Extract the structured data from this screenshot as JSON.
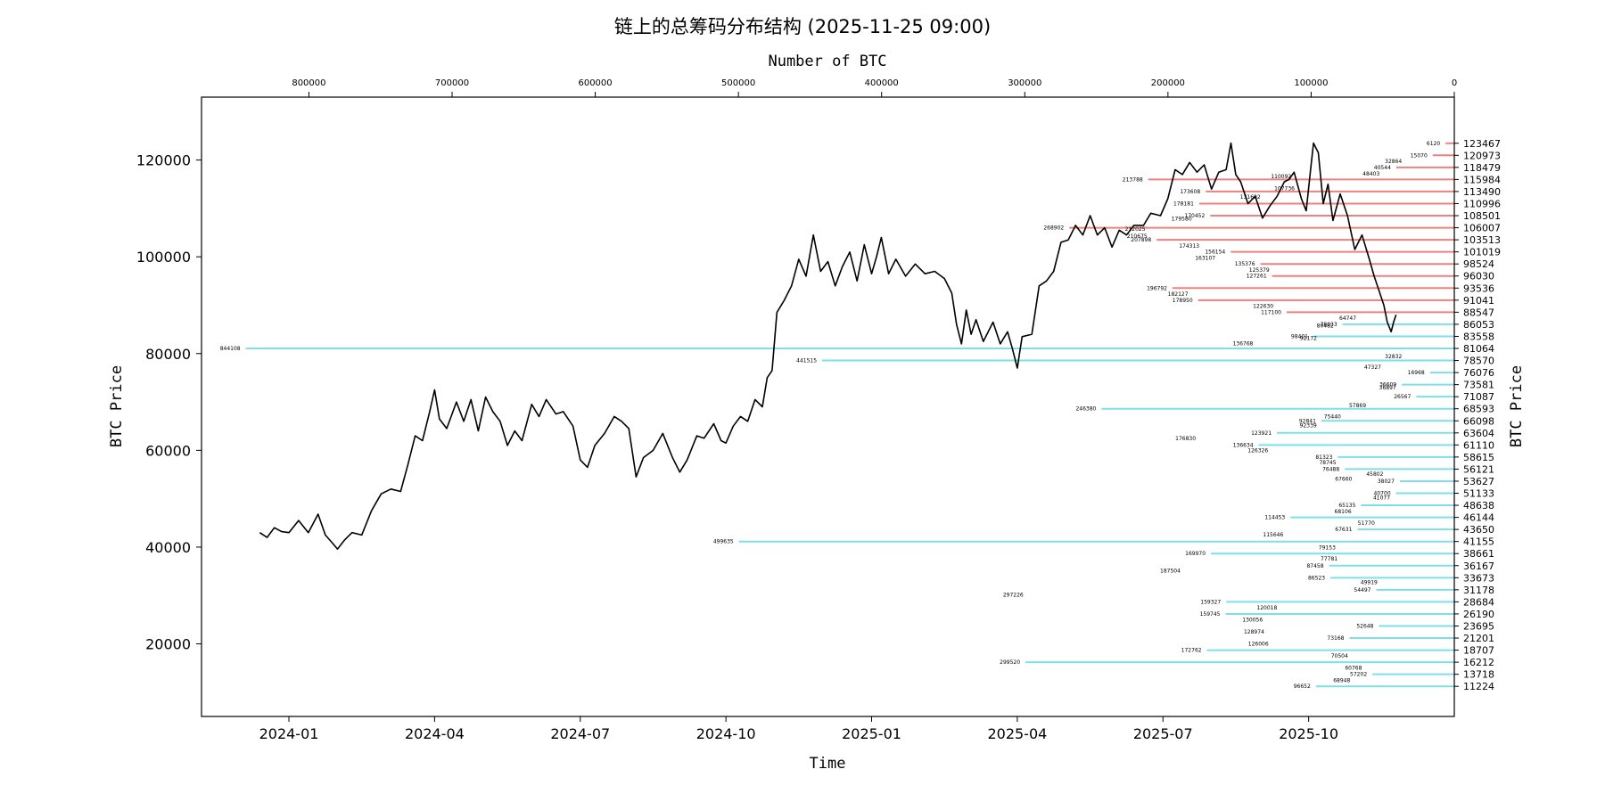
{
  "chart_data": {
    "type": "line",
    "title": "链上的总筹码分布结构 (2025-11-25 09:00)",
    "xlabel": "Time",
    "ylabel": "BTC Price",
    "right_ylabel": "BTC Price",
    "top_xlabel": "Number of BTC",
    "ylim": [
      5000,
      133000
    ],
    "xlim_months": [
      -1.8,
      24.0
    ],
    "top_xlim": [
      0,
      875000
    ],
    "grid": false,
    "x_ticks": [
      {
        "label": "2024-01",
        "m": 0
      },
      {
        "label": "2024-04",
        "m": 3
      },
      {
        "label": "2024-07",
        "m": 6
      },
      {
        "label": "2024-10",
        "m": 9
      },
      {
        "label": "2025-01",
        "m": 12
      },
      {
        "label": "2025-04",
        "m": 15
      },
      {
        "label": "2025-07",
        "m": 18
      },
      {
        "label": "2025-10",
        "m": 21
      }
    ],
    "y_ticks": [
      {
        "label": "20000",
        "v": 20000
      },
      {
        "label": "40000",
        "v": 40000
      },
      {
        "label": "60000",
        "v": 60000
      },
      {
        "label": "80000",
        "v": 80000
      },
      {
        "label": "100000",
        "v": 100000
      },
      {
        "label": "120000",
        "v": 120000
      }
    ],
    "top_ticks": [
      {
        "label": "800000",
        "v": 800000
      },
      {
        "label": "700000",
        "v": 700000
      },
      {
        "label": "600000",
        "v": 600000
      },
      {
        "label": "500000",
        "v": 500000
      },
      {
        "label": "400000",
        "v": 400000
      },
      {
        "label": "300000",
        "v": 300000
      },
      {
        "label": "200000",
        "v": 200000
      },
      {
        "label": "100000",
        "v": 100000
      },
      {
        "label": "0",
        "v": 0
      }
    ],
    "price_series": {
      "name": "BTC",
      "color": "#000000",
      "points": [
        [
          -0.6,
          43000
        ],
        [
          -0.45,
          42000
        ],
        [
          -0.3,
          44000
        ],
        [
          -0.15,
          43200
        ],
        [
          0.0,
          43000
        ],
        [
          0.2,
          45500
        ],
        [
          0.4,
          43000
        ],
        [
          0.6,
          46800
        ],
        [
          0.75,
          42500
        ],
        [
          0.9,
          40800
        ],
        [
          1.0,
          39600
        ],
        [
          1.15,
          41500
        ],
        [
          1.3,
          43000
        ],
        [
          1.5,
          42500
        ],
        [
          1.7,
          47500
        ],
        [
          1.9,
          51000
        ],
        [
          2.1,
          52000
        ],
        [
          2.3,
          51500
        ],
        [
          2.45,
          57000
        ],
        [
          2.6,
          63000
        ],
        [
          2.75,
          62000
        ],
        [
          2.9,
          68000
        ],
        [
          3.0,
          72500
        ],
        [
          3.1,
          66500
        ],
        [
          3.25,
          64500
        ],
        [
          3.45,
          70000
        ],
        [
          3.6,
          66000
        ],
        [
          3.75,
          70500
        ],
        [
          3.9,
          64000
        ],
        [
          4.05,
          71000
        ],
        [
          4.2,
          68000
        ],
        [
          4.35,
          66000
        ],
        [
          4.5,
          61000
        ],
        [
          4.65,
          64000
        ],
        [
          4.8,
          62000
        ],
        [
          5.0,
          69500
        ],
        [
          5.15,
          67000
        ],
        [
          5.3,
          70500
        ],
        [
          5.5,
          67500
        ],
        [
          5.65,
          68000
        ],
        [
          5.85,
          65000
        ],
        [
          6.0,
          58000
        ],
        [
          6.15,
          56500
        ],
        [
          6.3,
          61000
        ],
        [
          6.5,
          63500
        ],
        [
          6.7,
          67000
        ],
        [
          6.85,
          66000
        ],
        [
          7.0,
          64500
        ],
        [
          7.15,
          54500
        ],
        [
          7.3,
          58500
        ],
        [
          7.5,
          60000
        ],
        [
          7.7,
          63500
        ],
        [
          7.9,
          58500
        ],
        [
          8.05,
          55500
        ],
        [
          8.2,
          58000
        ],
        [
          8.4,
          63000
        ],
        [
          8.55,
          62500
        ],
        [
          8.75,
          65500
        ],
        [
          8.9,
          62000
        ],
        [
          9.0,
          61500
        ],
        [
          9.15,
          65000
        ],
        [
          9.3,
          67000
        ],
        [
          9.45,
          66000
        ],
        [
          9.6,
          70500
        ],
        [
          9.75,
          69000
        ],
        [
          9.85,
          75000
        ],
        [
          9.95,
          76500
        ],
        [
          10.05,
          88500
        ],
        [
          10.2,
          91000
        ],
        [
          10.35,
          94000
        ],
        [
          10.5,
          99500
        ],
        [
          10.65,
          96000
        ],
        [
          10.8,
          104500
        ],
        [
          10.95,
          97000
        ],
        [
          11.1,
          99000
        ],
        [
          11.25,
          94000
        ],
        [
          11.4,
          98000
        ],
        [
          11.55,
          101000
        ],
        [
          11.7,
          95000
        ],
        [
          11.85,
          102500
        ],
        [
          12.0,
          96500
        ],
        [
          12.1,
          100000
        ],
        [
          12.2,
          104000
        ],
        [
          12.35,
          96500
        ],
        [
          12.5,
          99500
        ],
        [
          12.7,
          96000
        ],
        [
          12.9,
          98500
        ],
        [
          13.1,
          96500
        ],
        [
          13.3,
          97000
        ],
        [
          13.5,
          95500
        ],
        [
          13.65,
          92500
        ],
        [
          13.75,
          86000
        ],
        [
          13.85,
          82000
        ],
        [
          13.95,
          89000
        ],
        [
          14.05,
          84000
        ],
        [
          14.15,
          87000
        ],
        [
          14.3,
          82500
        ],
        [
          14.5,
          86500
        ],
        [
          14.65,
          82000
        ],
        [
          14.8,
          84500
        ],
        [
          14.9,
          81000
        ],
        [
          15.0,
          77000
        ],
        [
          15.1,
          83500
        ],
        [
          15.3,
          84000
        ],
        [
          15.45,
          94000
        ],
        [
          15.6,
          95000
        ],
        [
          15.75,
          97000
        ],
        [
          15.9,
          103000
        ],
        [
          16.05,
          103500
        ],
        [
          16.2,
          106500
        ],
        [
          16.35,
          104500
        ],
        [
          16.5,
          108500
        ],
        [
          16.65,
          104500
        ],
        [
          16.8,
          106000
        ],
        [
          16.95,
          102000
        ],
        [
          17.1,
          105500
        ],
        [
          17.25,
          104500
        ],
        [
          17.4,
          106500
        ],
        [
          17.6,
          106500
        ],
        [
          17.75,
          109000
        ],
        [
          17.95,
          108500
        ],
        [
          18.1,
          112000
        ],
        [
          18.25,
          118000
        ],
        [
          18.4,
          117000
        ],
        [
          18.55,
          119500
        ],
        [
          18.7,
          117500
        ],
        [
          18.85,
          119000
        ],
        [
          19.0,
          114000
        ],
        [
          19.15,
          117500
        ],
        [
          19.3,
          118000
        ],
        [
          19.4,
          123500
        ],
        [
          19.5,
          117000
        ],
        [
          19.6,
          115500
        ],
        [
          19.75,
          111000
        ],
        [
          19.9,
          112500
        ],
        [
          20.05,
          108000
        ],
        [
          20.2,
          110500
        ],
        [
          20.35,
          112500
        ],
        [
          20.5,
          115500
        ],
        [
          20.6,
          116000
        ],
        [
          20.7,
          117500
        ],
        [
          20.85,
          112000
        ],
        [
          20.95,
          109500
        ],
        [
          21.05,
          119000
        ],
        [
          21.1,
          123500
        ],
        [
          21.2,
          121500
        ],
        [
          21.3,
          111000
        ],
        [
          21.4,
          115000
        ],
        [
          21.5,
          107500
        ],
        [
          21.65,
          113000
        ],
        [
          21.8,
          108500
        ],
        [
          21.95,
          101500
        ],
        [
          22.1,
          104500
        ],
        [
          22.25,
          99500
        ],
        [
          22.35,
          96000
        ],
        [
          22.45,
          93000
        ],
        [
          22.55,
          90000
        ],
        [
          22.62,
          86500
        ],
        [
          22.7,
          84500
        ],
        [
          22.75,
          86500
        ],
        [
          22.8,
          88000
        ]
      ]
    },
    "distribution": {
      "label_color": "#000000",
      "above_color": "#f08080",
      "below_color": "#7fdfe6",
      "bins": [
        {
          "price": "123467",
          "btc": 6120
        },
        {
          "price": "120973",
          "btc": 15070
        },
        {
          "price": "118479",
          "btc": 40544
        },
        {
          "price": "115984",
          "btc": 213788
        },
        {
          "price": "113490",
          "btc": 173608
        },
        {
          "price": "110996",
          "btc": 178181
        },
        {
          "price": "108501",
          "btc": 170452
        },
        {
          "price": "106007",
          "btc": 268902
        },
        {
          "price": "103513",
          "btc": 207898
        },
        {
          "price": "101019",
          "btc": 156154
        },
        {
          "price": "98524",
          "btc": 135376
        },
        {
          "price": "96030",
          "btc": 127261
        },
        {
          "price": "93536",
          "btc": 196792
        },
        {
          "price": "91041",
          "btc": 178950
        },
        {
          "price": "88547",
          "btc": 117100
        },
        {
          "price": "86053",
          "btc": 78033
        },
        {
          "price": "83558",
          "btc": 98401
        },
        {
          "price": "81064",
          "btc": 844108
        },
        {
          "price": "78570",
          "btc": 441515
        },
        {
          "price": "76076",
          "btc": 16968
        },
        {
          "price": "73581",
          "btc": 36609
        },
        {
          "price": "71087",
          "btc": 26567
        },
        {
          "price": "68593",
          "btc": 246380
        },
        {
          "price": "66098",
          "btc": 92841
        },
        {
          "price": "63604",
          "btc": 123921
        },
        {
          "price": "61110",
          "btc": 136634
        },
        {
          "price": "58615",
          "btc": 81323
        },
        {
          "price": "56121",
          "btc": 76488
        },
        {
          "price": "53627",
          "btc": 38027
        },
        {
          "price": "51133",
          "btc": 40700
        },
        {
          "price": "48638",
          "btc": 65135
        },
        {
          "price": "46144",
          "btc": 114453
        },
        {
          "price": "43650",
          "btc": 67631
        },
        {
          "price": "41155",
          "btc": 499635
        },
        {
          "price": "38661",
          "btc": 169970
        },
        {
          "price": "36167",
          "btc": 87458
        },
        {
          "price": "33673",
          "btc": 86523
        },
        {
          "price": "31178",
          "btc": 54497
        },
        {
          "price": "28684",
          "btc": 159327
        },
        {
          "price": "26190",
          "btc": 159745
        },
        {
          "price": "23695",
          "btc": 52648
        },
        {
          "price": "21201",
          "btc": 73168
        },
        {
          "price": "18707",
          "btc": 172762
        },
        {
          "price": "16212",
          "btc": 299520
        },
        {
          "price": "13718",
          "btc": 57202
        },
        {
          "price": "11224",
          "btc": 96652
        }
      ],
      "extra_labels": [
        {
          "text": "32864",
          "price": 119700
        },
        {
          "text": "48403",
          "price": 117200
        },
        {
          "text": "110092",
          "price": 116650
        },
        {
          "text": "107736",
          "price": 114100
        },
        {
          "text": "131602",
          "price": 112400
        },
        {
          "text": "179580",
          "price": 107900
        },
        {
          "text": "212025",
          "price": 105700
        },
        {
          "text": "210675",
          "price": 104300
        },
        {
          "text": "174313",
          "price": 102200
        },
        {
          "text": "163107",
          "price": 99800
        },
        {
          "text": "125379",
          "price": 97300
        },
        {
          "text": "182127",
          "price": 92300
        },
        {
          "text": "122630",
          "price": 89800
        },
        {
          "text": "64747",
          "price": 87300
        },
        {
          "text": "80482",
          "price": 85800
        },
        {
          "text": "92172",
          "price": 83200
        },
        {
          "text": "136768",
          "price": 82100
        },
        {
          "text": "32832",
          "price": 79400
        },
        {
          "text": "47327",
          "price": 77200
        },
        {
          "text": "36897",
          "price": 73000
        },
        {
          "text": "57869",
          "price": 69300
        },
        {
          "text": "75440",
          "price": 67000
        },
        {
          "text": "92339",
          "price": 65100
        },
        {
          "text": "176830",
          "price": 62500
        },
        {
          "text": "126326",
          "price": 60000
        },
        {
          "text": "78745",
          "price": 57500
        },
        {
          "text": "45802",
          "price": 55100
        },
        {
          "text": "67660",
          "price": 54100
        },
        {
          "text": "41077",
          "price": 50200
        },
        {
          "text": "68106",
          "price": 47400
        },
        {
          "text": "51770",
          "price": 45000
        },
        {
          "text": "115646",
          "price": 42600
        },
        {
          "text": "79153",
          "price": 39900
        },
        {
          "text": "77781",
          "price": 37600
        },
        {
          "text": "187504",
          "price": 35100
        },
        {
          "text": "49919",
          "price": 32700
        },
        {
          "text": "297226",
          "price": 30100
        },
        {
          "text": "120018",
          "price": 27500
        },
        {
          "text": "130056",
          "price": 25000
        },
        {
          "text": "128974",
          "price": 22500
        },
        {
          "text": "126006",
          "price": 20000
        },
        {
          "text": "70504",
          "price": 17500
        },
        {
          "text": "60768",
          "price": 15000
        },
        {
          "text": "68948",
          "price": 12500
        }
      ]
    }
  }
}
